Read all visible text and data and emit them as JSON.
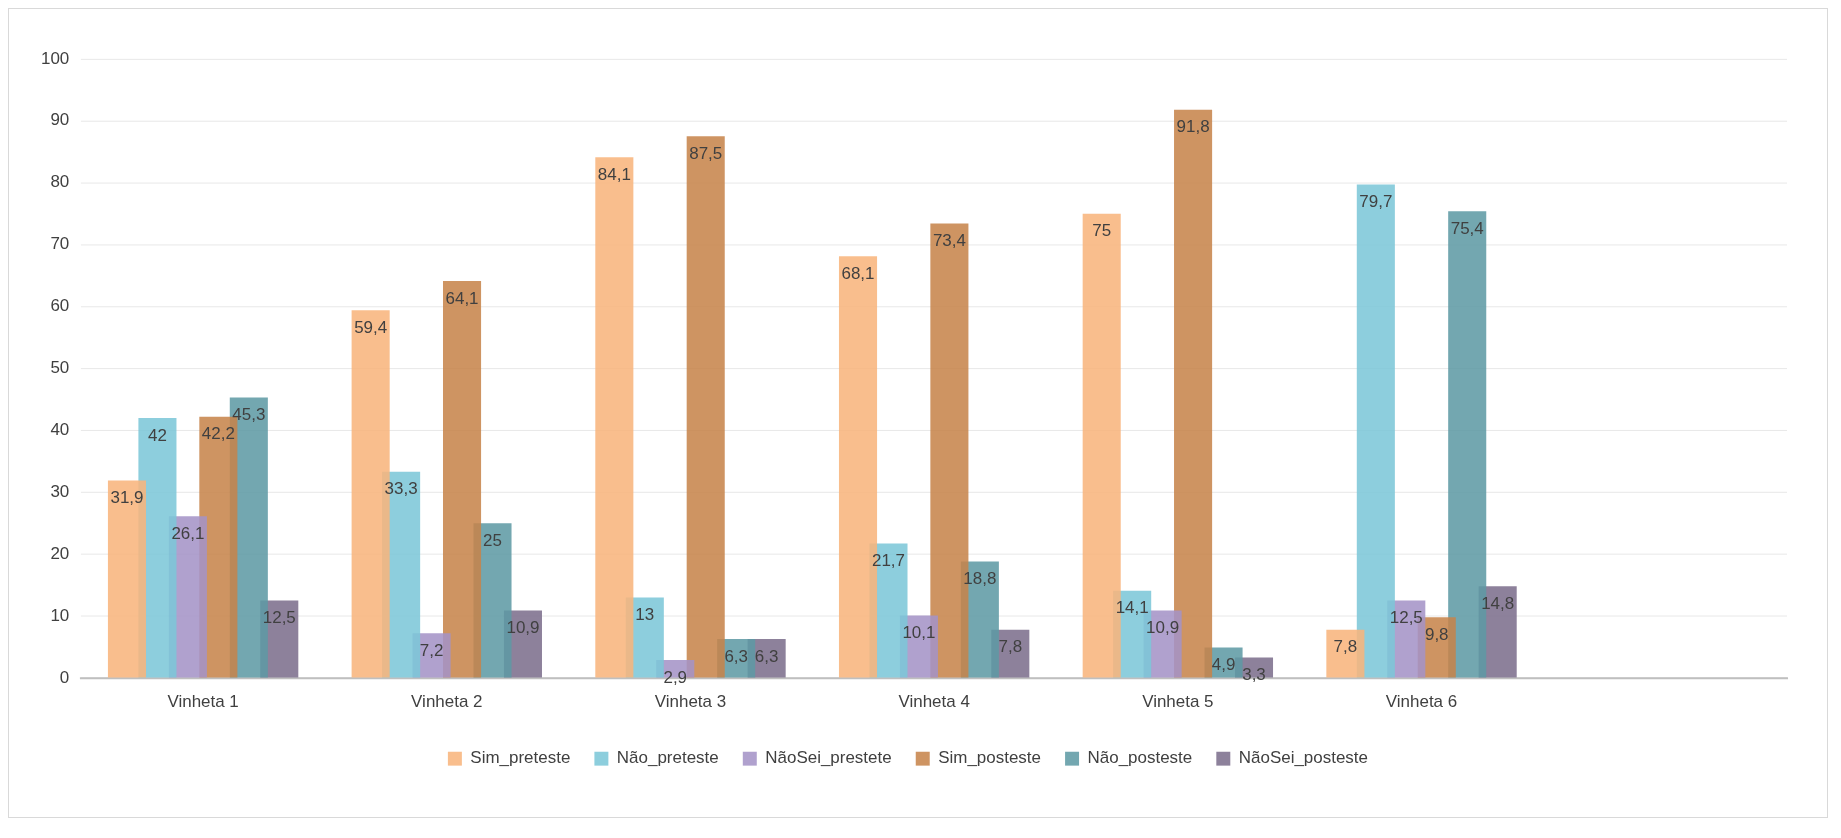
{
  "chart_data": {
    "type": "bar",
    "categories": [
      "Vinheta 1",
      "Vinheta 2",
      "Vinheta 3",
      "Vinheta 4",
      "Vinheta 5",
      "Vinheta 6",
      null
    ],
    "series": [
      {
        "name": "Sim_preteste",
        "color": "#f8b47c",
        "values": [
          31.9,
          59.4,
          84.1,
          68.1,
          75,
          7.8,
          null
        ],
        "value_labels": [
          "31,9",
          "59,4",
          "84,1",
          "68,1",
          "75",
          "7,8",
          null
        ]
      },
      {
        "name": "Não_preteste",
        "color": "#7cc6d8",
        "values": [
          42,
          33.3,
          13,
          21.7,
          14.1,
          79.7,
          null
        ],
        "value_labels": [
          "42",
          "33,3",
          "13",
          "21,7",
          "14,1",
          "79,7",
          null
        ]
      },
      {
        "name": "NãoSei_prestete",
        "color": "#a493c6",
        "values": [
          26.1,
          7.2,
          2.9,
          10.1,
          10.9,
          12.5,
          null
        ],
        "value_labels": [
          "26,1",
          "7,2",
          "2,9",
          "10,1",
          "10,9",
          "12,5",
          null
        ]
      },
      {
        "name": "Sim_posteste",
        "color": "#c7834a",
        "values": [
          42.2,
          64.1,
          87.5,
          73.4,
          91.8,
          9.8,
          null
        ],
        "value_labels": [
          "42,2",
          "64,1",
          "87,5",
          "73,4",
          "91,8",
          "9,8",
          null
        ]
      },
      {
        "name": "Não_posteste",
        "color": "#5e9aa4",
        "values": [
          45.3,
          25,
          6.3,
          18.8,
          4.9,
          75.4,
          null
        ],
        "value_labels": [
          "45,3",
          "25",
          "6,3",
          "18,8",
          "4,9",
          "75,4",
          null
        ]
      },
      {
        "name": "NãoSei_posteste",
        "color": "#7c6e8c",
        "values": [
          12.5,
          10.9,
          6.3,
          7.8,
          3.3,
          14.8,
          null
        ],
        "value_labels": [
          "12,5",
          "10,9",
          "6,3",
          "7,8",
          "3,3",
          "14,8",
          null
        ]
      }
    ],
    "ylim": [
      0,
      100
    ],
    "yticks": [
      0,
      10,
      20,
      30,
      40,
      50,
      60,
      70,
      80,
      90,
      100
    ],
    "grid": "y",
    "legend": "bottom"
  }
}
